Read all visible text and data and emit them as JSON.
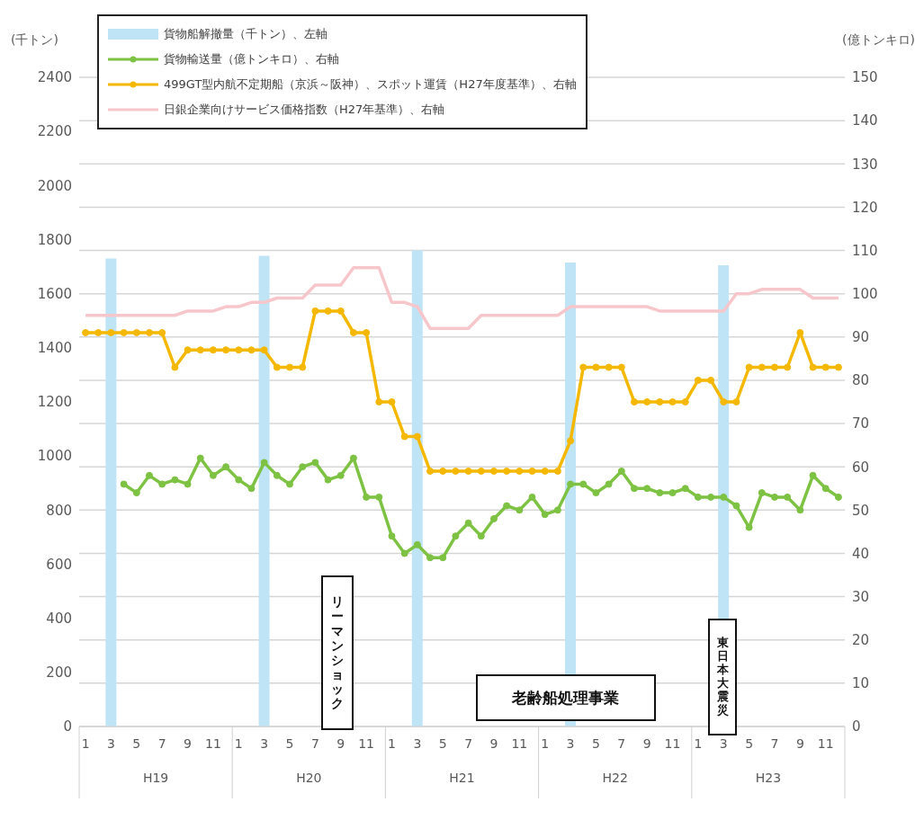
{
  "chart_data": {
    "type": "line",
    "ylabel": "(千トン)",
    "y2label": "(億トンキロ)",
    "categories": [
      "1",
      null,
      "3",
      null,
      "5",
      null,
      "7",
      null,
      "9",
      null,
      "11",
      null,
      "1",
      null,
      "3",
      null,
      "5",
      null,
      "7",
      null,
      "9",
      null,
      "11",
      null,
      "1",
      null,
      "3",
      null,
      "5",
      null,
      "7",
      null,
      "9",
      null,
      "11",
      null,
      "1",
      null,
      "3",
      null,
      "5",
      null,
      "7",
      null,
      "9",
      null,
      "11",
      null,
      "1",
      null,
      "3",
      null,
      "5",
      null,
      "7",
      null,
      "9",
      null,
      "11",
      null
    ],
    "series": [
      {
        "type": "bar",
        "axis": "y",
        "name": "貨物船解撤量（千トン）、左軸",
        "color": "#bfe4f6",
        "values": [
          null,
          null,
          1730,
          null,
          null,
          null,
          null,
          null,
          null,
          null,
          null,
          null,
          null,
          null,
          1740,
          null,
          null,
          null,
          null,
          null,
          null,
          null,
          null,
          null,
          null,
          null,
          1760,
          null,
          null,
          null,
          null,
          null,
          null,
          null,
          null,
          null,
          null,
          null,
          1715,
          null,
          null,
          null,
          null,
          null,
          null,
          null,
          null,
          null,
          null,
          null,
          1705,
          null,
          null,
          null,
          null,
          null,
          null,
          null,
          null,
          null
        ]
      },
      {
        "axis": "y2",
        "name": "貨物輸送量（億トンキロ）、右軸",
        "color": "#7dc242",
        "marker": "circle",
        "values": [
          null,
          null,
          null,
          56,
          54,
          58,
          56,
          57,
          56,
          62,
          58,
          60,
          57,
          55,
          61,
          58,
          56,
          60,
          61,
          57,
          58,
          62,
          53,
          53,
          44,
          40,
          42,
          39,
          39,
          44,
          47,
          44,
          48,
          51,
          50,
          53,
          49,
          50,
          56,
          56,
          54,
          56,
          59,
          55,
          55,
          54,
          54,
          55,
          53,
          53,
          53,
          51,
          46,
          54,
          53,
          53,
          50,
          58,
          55,
          53
        ]
      },
      {
        "axis": "y2",
        "name": "499GT型内航不定期船（京浜～阪神）、スポット運賃（H27年度基準）、右軸",
        "color": "#f5b800",
        "marker": "circle",
        "values": [
          91,
          91,
          91,
          91,
          91,
          91,
          91,
          83,
          87,
          87,
          87,
          87,
          87,
          87,
          87,
          83,
          83,
          83,
          96,
          96,
          96,
          91,
          91,
          75,
          75,
          67,
          67,
          59,
          59,
          59,
          59,
          59,
          59,
          59,
          59,
          59,
          59,
          59,
          66,
          83,
          83,
          83,
          83,
          75,
          75,
          75,
          75,
          75,
          80,
          80,
          75,
          75,
          83,
          83,
          83,
          83,
          91,
          83,
          83,
          83
        ]
      },
      {
        "axis": "y2",
        "name": "日銀企業向けサービス価格指数（H27年基準）、右軸",
        "color": "#f7c6cb",
        "marker": "none",
        "values": [
          95,
          95,
          95,
          95,
          95,
          95,
          95,
          95,
          96,
          96,
          96,
          97,
          97,
          98,
          98,
          99,
          99,
          99,
          102,
          102,
          102,
          106,
          106,
          106,
          98,
          98,
          97,
          92,
          92,
          92,
          92,
          95,
          95,
          95,
          95,
          95,
          95,
          95,
          97,
          97,
          97,
          97,
          97,
          97,
          97,
          96,
          96,
          96,
          96,
          96,
          96,
          100,
          100,
          101,
          101,
          101,
          101,
          99,
          99,
          99
        ]
      }
    ],
    "ylim": [
      0,
      2400
    ],
    "yticks": [
      0,
      200,
      400,
      600,
      800,
      1000,
      1200,
      1400,
      1600,
      1800,
      2000,
      2200,
      2400
    ],
    "y2lim": [
      0,
      150
    ],
    "y2ticks": [
      0,
      10,
      20,
      30,
      40,
      50,
      60,
      70,
      80,
      90,
      100,
      110,
      120,
      130,
      140,
      150
    ],
    "grid": "y2",
    "legend": "top left",
    "annotations": [
      "リーマンショック",
      "東日本大震災",
      "老齢船処理事業",
      "H19",
      "H20",
      "H21",
      "H22",
      "H23"
    ]
  }
}
